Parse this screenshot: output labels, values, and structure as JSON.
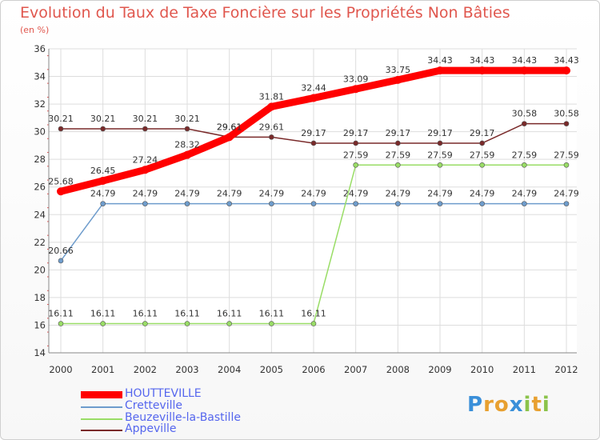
{
  "title": "Evolution du Taux de Taxe Foncière sur les Propriétés Non Bâties",
  "subtitle": "(en %)",
  "logo": "Proxiti",
  "chart_data": {
    "type": "line",
    "categories": [
      "2000",
      "2001",
      "2002",
      "2003",
      "2004",
      "2005",
      "2006",
      "2007",
      "2008",
      "2009",
      "2010",
      "2011",
      "2012"
    ],
    "ylim": [
      14,
      36
    ],
    "yticks": [
      14,
      16,
      18,
      20,
      22,
      24,
      26,
      28,
      30,
      32,
      34,
      36
    ],
    "grid": true,
    "series": [
      {
        "name": "HOUTTEVILLE",
        "color": "#ff0000",
        "values": [
          25.68,
          26.45,
          27.24,
          28.32,
          29.61,
          31.81,
          32.44,
          33.09,
          33.75,
          34.43,
          34.43,
          34.43,
          34.43
        ],
        "labels": [
          "25.68",
          "26.45",
          "27.24",
          "28.32",
          "29.61",
          "31.81",
          "32.44",
          "33.09",
          "33.75",
          "34.43",
          "34.43",
          "34.43",
          "34.43"
        ]
      },
      {
        "name": "Cretteville",
        "color": "#6e9ccc",
        "values": [
          20.66,
          24.79,
          24.79,
          24.79,
          24.79,
          24.79,
          24.79,
          24.79,
          24.79,
          24.79,
          24.79,
          24.79,
          24.79
        ],
        "labels": [
          "20.66",
          "24.79",
          "24.79",
          "24.79",
          "24.79",
          "24.79",
          "24.79",
          "24.79",
          "24.79",
          "24.79",
          "24.79",
          "24.79",
          "24.79"
        ]
      },
      {
        "name": "Beuzeville-la-Bastille",
        "color": "#99dd66",
        "values": [
          16.11,
          16.11,
          16.11,
          16.11,
          16.11,
          16.11,
          16.11,
          27.59,
          27.59,
          27.59,
          27.59,
          27.59,
          27.59
        ],
        "labels": [
          "16.11",
          "16.11",
          "16.11",
          "16.11",
          "16.11",
          "16.11",
          "16.11",
          "27.59",
          "27.59",
          "27.59",
          "27.59",
          "27.59",
          "27.59"
        ]
      },
      {
        "name": "Appeville",
        "color": "#7a2a2a",
        "values": [
          30.21,
          30.21,
          30.21,
          30.21,
          29.61,
          29.61,
          29.17,
          29.17,
          29.17,
          29.17,
          29.17,
          30.58,
          30.58
        ],
        "labels": [
          "30.21",
          "30.21",
          "30.21",
          "30.21",
          "29.61",
          "29.61",
          "29.17",
          "29.17",
          "29.17",
          "29.17",
          "29.17",
          "30.58",
          "30.58"
        ]
      }
    ]
  }
}
